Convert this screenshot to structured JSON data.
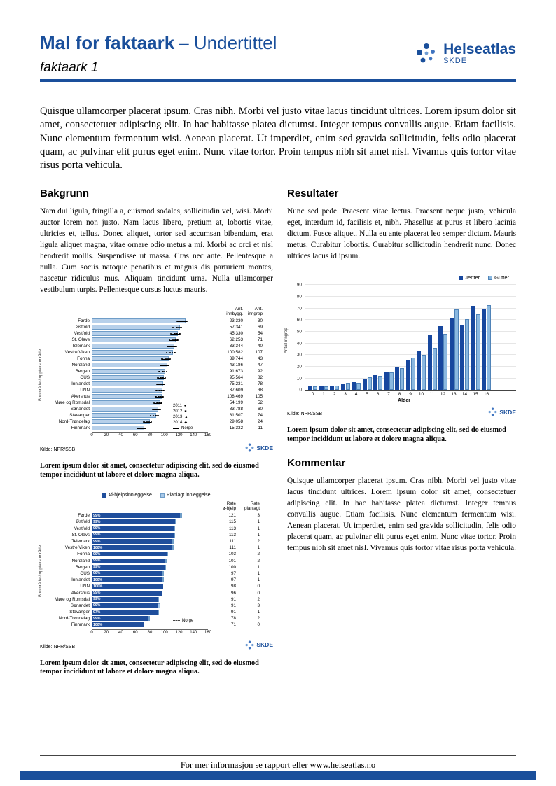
{
  "page": {
    "header": {
      "title": "Mal for faktaark",
      "title_suffix": "– Undertittel",
      "docname": "faktaark 1",
      "logo_text": "Helseatlas",
      "logo_sub": "SKDE"
    },
    "intro": "Quisque ullamcorper placerat ipsum. Cras nibh. Morbi vel justo vitae lacus tincidunt ultrices. Lorem ipsum dolor sit amet, consectetuer adipiscing elit. In hac habitasse platea dictumst. Integer tempus convallis augue. Etiam facilisis. Nunc elementum fermentum wisi. Aenean placerat. Ut imperdiet, enim sed gravida sollicitudin, felis odio placerat quam, ac pulvinar elit purus eget enim. Nunc vitae tortor. Proin tempus nibh sit amet nisl. Vivamus quis tortor vitae risus porta vehicula.",
    "sections": {
      "bakgrunn": {
        "heading": "Bakgrunn",
        "body": "Nam dui ligula, fringilla a, euismod sodales, sollicitudin vel, wisi. Morbi auctor lorem non justo. Nam lacus libero, pretium at, lobortis vitae, ultricies et, tellus. Donec aliquet, tortor sed accumsan bibendum, erat ligula aliquet magna, vitae ornare odio metus a mi. Morbi ac orci et nisl hendrerit mollis. Suspendisse ut massa. Cras nec ante. Pellentesque a nulla. Cum sociis natoque penatibus et magnis dis parturient montes, nascetur ridiculus mus. Aliquam tincidunt urna. Nulla ullamcorper vestibulum turpis. Pellentesque cursus luctus mauris."
      },
      "resultater": {
        "heading": "Resultater",
        "body": "Nunc sed pede. Praesent vitae lectus. Praesent neque justo, vehicula eget, interdum id, facilisis et, nibh. Phasellus at purus et libero lacinia dictum. Fusce aliquet. Nulla eu ante placerat leo semper dictum. Mauris metus. Curabitur lobortis. Curabitur sollicitudin hendrerit nunc. Donec ultrices lacus id ipsum."
      },
      "kommentar": {
        "heading": "Kommentar",
        "body": "Quisque ullamcorper placerat ipsum. Cras nibh. Morbi vel justo vitae lacus tincidunt ultrices. Lorem ipsum dolor sit amet, consectetuer adipiscing elit. In hac habitasse platea dictumst. Integer tempus convallis augue. Etiam facilisis. Nunc elementum fermentum wisi. Aenean placerat. Ut imperdiet, enim sed gravida sollicitudin, felis odio placerat quam, ac pulvinar elit purus eget enim. Nunc vitae tortor. Proin tempus nibh sit amet nisl. Vivamus quis tortor vitae risus porta vehicula."
      }
    },
    "captions": {
      "chart1": "Lorem ipsum dolor sit amet, consectetur adipiscing elit, sed do eiusmod tempor incididunt ut labore et dolore magna aliqua.",
      "chart2": "Lorem ipsum dolor sit amet, consectetur adipiscing elit, sed do eiusmod tempor incididunt ut labore et dolore magna aliqua.",
      "chart3": "Lorem ipsum dolor sit amet, consectetur adipiscing elit, sed do eiusmod tempor incididunt ut labore et dolore magna aliqua."
    },
    "footer_text": "For mer informasjon se rapport eller www.helseatlas.no",
    "colors": {
      "brand_blue": "#1a4f9b",
      "bar_light": "#b7d0ea",
      "bar_dark": "#1f4e9c",
      "bar_gutter": "#8ab8e0"
    }
  },
  "chart_data": [
    {
      "type": "bar",
      "orientation": "horizontal",
      "ylabel": "Boområde / opptaksområde",
      "xlim": [
        0,
        160
      ],
      "xticks": [
        0,
        20,
        40,
        60,
        80,
        100,
        120,
        140,
        160
      ],
      "categories": [
        "Førde",
        "Østfold",
        "Vestfold",
        "St. Olavs",
        "Telemark",
        "Vestre Viken",
        "Fonna",
        "Nordland",
        "Bergen",
        "OUS",
        "Innlandet",
        "UNN",
        "Akershus",
        "Møre og Romsdal",
        "Sørlandet",
        "Stavanger",
        "Nord-Trøndelag",
        "Finnmark"
      ],
      "series": [
        {
          "name": "Rate",
          "values": [
            129,
            121,
            119,
            116,
            114,
            112,
            106,
            104,
            101,
            99,
            98,
            97,
            96,
            94,
            92,
            89,
            80,
            72
          ]
        }
      ],
      "year_legend": [
        "2011",
        "2012",
        "2013",
        "2014"
      ],
      "year_values": [
        [
          118,
          124,
          131,
          127
        ],
        [
          112,
          117,
          123,
          120
        ],
        [
          109,
          114,
          121,
          117
        ],
        [
          107,
          112,
          118,
          115
        ],
        [
          104,
          110,
          116,
          112
        ],
        [
          103,
          108,
          114,
          111
        ],
        [
          97,
          102,
          108,
          105
        ],
        [
          95,
          100,
          106,
          103
        ],
        [
          93,
          98,
          103,
          100
        ],
        [
          91,
          95,
          101,
          98
        ],
        [
          90,
          94,
          100,
          97
        ],
        [
          89,
          93,
          99,
          96
        ],
        [
          88,
          92,
          98,
          95
        ],
        [
          86,
          90,
          96,
          93
        ],
        [
          84,
          88,
          94,
          91
        ],
        [
          81,
          85,
          91,
          88
        ],
        [
          72,
          76,
          82,
          79
        ],
        [
          63,
          68,
          74,
          71
        ]
      ],
      "reference_line": {
        "label": "Norge",
        "value": 100
      },
      "table": {
        "headers": [
          "Ant. innbygg.",
          "Ant. inngrep"
        ],
        "innbygg": [
          "23 330",
          "57 341",
          "45 330",
          "62 253",
          "33 344",
          "100 582",
          "39 744",
          "43 186",
          "91 673",
          "95 564",
          "75 231",
          "37 609",
          "108 469",
          "54 199",
          "83 788",
          "81 507",
          "29 058",
          "15 332"
        ],
        "inngrep": [
          30,
          69,
          54,
          71,
          40,
          107,
          43,
          47,
          92,
          82,
          78,
          38,
          105,
          52,
          60,
          74,
          24,
          11
        ]
      },
      "source": "Kilde: NPR/SSB"
    },
    {
      "type": "bar",
      "orientation": "vertical",
      "categories": [
        "0",
        "1",
        "2",
        "3",
        "4",
        "5",
        "6",
        "7",
        "8",
        "9",
        "10",
        "11",
        "12",
        "13",
        "14",
        "15",
        "16"
      ],
      "series": [
        {
          "name": "Jenter",
          "values": [
            4,
            3,
            4,
            5,
            7,
            10,
            13,
            16,
            20,
            26,
            34,
            47,
            55,
            62,
            56,
            72,
            70
          ]
        },
        {
          "name": "Gutter",
          "values": [
            3,
            3,
            4,
            6,
            6,
            11,
            12,
            15,
            19,
            28,
            30,
            36,
            48,
            69,
            61,
            65,
            73
          ]
        }
      ],
      "xlabel": "Alder",
      "ylabel": "Antall inngrep",
      "ylim": [
        0,
        90
      ],
      "yticks": [
        0,
        10,
        20,
        30,
        40,
        50,
        60,
        70,
        80,
        90
      ],
      "legend_position": "top-right",
      "source": "Kilde: NPR/SSB"
    },
    {
      "type": "bar",
      "orientation": "horizontal",
      "stacked": true,
      "ylabel": "Boområde / opptaksområde",
      "xlim": [
        0,
        160
      ],
      "xticks": [
        0,
        20,
        40,
        60,
        80,
        100,
        120,
        140,
        160
      ],
      "categories": [
        "Førde",
        "Østfold",
        "Vestfold",
        "St. Olavs",
        "Telemark",
        "Vestre Viken",
        "Fonna",
        "Nordland",
        "Bergen",
        "OUS",
        "Innlandet",
        "UNN",
        "Akershus",
        "Møre og Romsdal",
        "Sørlandet",
        "Stavanger",
        "Nord-Trøndelag",
        "Finnmark"
      ],
      "series": [
        {
          "name": "Ø-hjelpsinnleggelse",
          "values": [
            121,
            115,
            113,
            113,
            111,
            111,
            103,
            101,
            100,
            97,
            97,
            98,
            96,
            91,
            91,
            91,
            78,
            71
          ]
        },
        {
          "name": "Planlagt innleggelse",
          "values": [
            3,
            1,
            1,
            1,
            2,
            1,
            2,
            2,
            1,
            1,
            1,
            0,
            0,
            2,
            3,
            1,
            2,
            0
          ]
        }
      ],
      "bar_labels": [
        "99%",
        "99%",
        "99%",
        "99%",
        "99%",
        "100%",
        "99%",
        "99%",
        "99%",
        "99%",
        "100%",
        "100%",
        "99%",
        "99%",
        "99%",
        "97%",
        "99%",
        "100%"
      ],
      "reference_line": {
        "label": "Norge",
        "value": 100,
        "style": "dashed"
      },
      "table": {
        "headers": [
          "Rate ø-hjelp",
          "Rate planlagt"
        ],
        "rate_ohjelp": [
          121,
          115,
          113,
          113,
          111,
          111,
          103,
          101,
          100,
          97,
          97,
          98,
          96,
          91,
          91,
          91,
          78,
          71
        ],
        "rate_planlagt": [
          3,
          1,
          1,
          1,
          2,
          1,
          2,
          2,
          1,
          1,
          1,
          0,
          0,
          2,
          3,
          1,
          2,
          0
        ]
      },
      "source": "Kilde: NPR/SSB"
    }
  ]
}
